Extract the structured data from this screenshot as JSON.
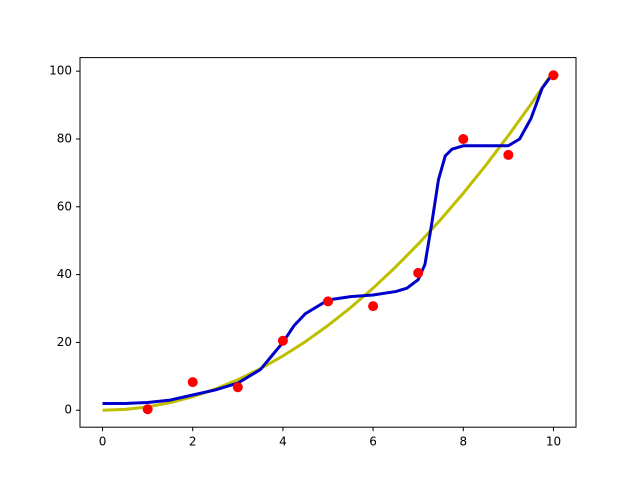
{
  "chart_data": {
    "type": "line",
    "xlim": [
      -0.5,
      10.5
    ],
    "ylim": [
      -5,
      104
    ],
    "xticks": [
      0,
      2,
      4,
      6,
      8,
      10
    ],
    "yticks": [
      0,
      20,
      40,
      60,
      80,
      100
    ],
    "series": [
      {
        "type": "line",
        "color": "#bfbf00",
        "x": [
          0,
          0.5,
          1,
          1.5,
          2,
          2.5,
          3,
          3.5,
          4,
          4.5,
          5,
          5.5,
          6,
          6.5,
          7,
          7.5,
          8,
          8.5,
          9,
          9.5,
          10
        ],
        "values": [
          0,
          0.25,
          1,
          2.25,
          4,
          6.25,
          9,
          12.25,
          16,
          20.25,
          25,
          30.25,
          36,
          42.25,
          49,
          56.25,
          64,
          72.25,
          81,
          90.25,
          100
        ]
      },
      {
        "type": "line",
        "color": "#0000cc",
        "x": [
          0,
          0.5,
          1,
          1.5,
          2,
          2.5,
          3,
          3.5,
          3.75,
          4,
          4.25,
          4.5,
          5,
          5.5,
          6,
          6.5,
          6.75,
          7,
          7.15,
          7.3,
          7.45,
          7.6,
          7.75,
          8,
          8.5,
          9,
          9.25,
          9.5,
          9.75,
          10
        ],
        "values": [
          2,
          2,
          2.3,
          3,
          4.5,
          6,
          8,
          12,
          16,
          20,
          25,
          28.5,
          32.5,
          33.5,
          34,
          35,
          36,
          38.5,
          43,
          55,
          68,
          75,
          77,
          78,
          78,
          78,
          80,
          86,
          95,
          99.5
        ]
      },
      {
        "type": "scatter",
        "color": "#ff0000",
        "x": [
          1,
          2,
          3,
          4,
          5,
          6,
          7,
          8,
          9,
          10
        ],
        "values": [
          0.3,
          8.3,
          6.8,
          20.5,
          32.1,
          30.7,
          40.5,
          80,
          75.3,
          98.8
        ]
      }
    ]
  }
}
